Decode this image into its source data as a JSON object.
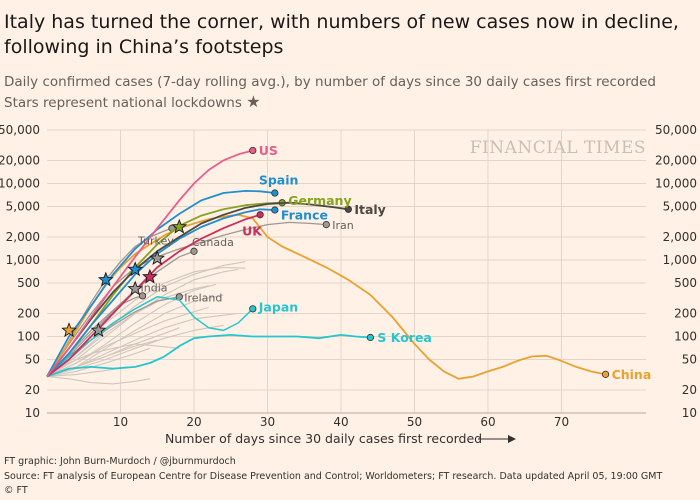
{
  "title": "Italy has turned the corner, with numbers of new cases now in decline, following in China’s footsteps",
  "subtitle_line1": "Daily confirmed cases (7-day rolling avg.), by number of days since 30 daily cases first recorded",
  "subtitle_line2": "Stars represent national lockdowns",
  "brand_watermark": "FINANCIAL TIMES",
  "footer": {
    "credit": "FT graphic: John Burn-Murdoch / @jburnmurdoch",
    "source": "Source: FT analysis of European Centre for Disease Prevention and Control; Worldometers; FT research. Data updated April 05, 19:00 GMT",
    "copyright": "© FT"
  },
  "chart_data": {
    "type": "line",
    "xlabel": "Number of days since 30 daily cases first recorded",
    "ylabel": "",
    "xlim": [
      0,
      80
    ],
    "ylim": [
      10,
      50000
    ],
    "yscale": "log",
    "yticks": [
      10,
      20,
      50,
      100,
      200,
      500,
      1000,
      2000,
      5000,
      10000,
      20000,
      50000
    ],
    "ytick_labels": [
      "10",
      "20",
      "50",
      "100",
      "200",
      "500",
      "1,000",
      "2,000",
      "5,000",
      "10,000",
      "20,000",
      "50,000"
    ],
    "xticks": [
      10,
      20,
      30,
      40,
      50,
      60,
      70
    ],
    "grid": true,
    "axis_labels_both_sides": true,
    "series": [
      {
        "name": "US",
        "color": "#e95d8c",
        "width": 1.8,
        "label_weight": "bold",
        "label_dx": 6,
        "label_dy": 0,
        "x": [
          0,
          3,
          6,
          9,
          12,
          15,
          18,
          20,
          22,
          24,
          26,
          28
        ],
        "y": [
          30,
          70,
          180,
          450,
          1100,
          2600,
          6000,
          10000,
          15000,
          20000,
          24000,
          27000
        ]
      },
      {
        "name": "Spain",
        "color": "#1f8fce",
        "width": 1.8,
        "label_weight": "bold",
        "label_dx": -16,
        "label_dy": -13,
        "x": [
          0,
          3,
          6,
          9,
          12,
          15,
          18,
          21,
          24,
          27,
          29,
          31
        ],
        "y": [
          30,
          100,
          250,
          650,
          1400,
          2500,
          4000,
          6000,
          7500,
          8000,
          7900,
          7500
        ]
      },
      {
        "name": "Germany",
        "color": "#85a320",
        "width": 1.8,
        "label_weight": "bold",
        "label_dx": 6,
        "label_dy": -2,
        "x": [
          0,
          3,
          6,
          9,
          12,
          15,
          18,
          21,
          24,
          27,
          30,
          32
        ],
        "y": [
          30,
          60,
          140,
          350,
          800,
          1600,
          2800,
          3800,
          4600,
          5200,
          5500,
          5600
        ]
      },
      {
        "name": "Italy",
        "color": "#4d4845",
        "width": 1.8,
        "label_weight": "bold",
        "label_dx": 6,
        "label_dy": 0,
        "x": [
          0,
          3,
          6,
          9,
          12,
          15,
          18,
          21,
          24,
          27,
          30,
          33,
          36,
          39,
          41
        ],
        "y": [
          30,
          70,
          170,
          380,
          750,
          1300,
          2000,
          3000,
          3900,
          4800,
          5400,
          5600,
          5300,
          4900,
          4600
        ]
      },
      {
        "name": "France",
        "color": "#1f8fce",
        "width": 1.8,
        "label_weight": "bold",
        "label_dx": 6,
        "label_dy": 5,
        "x": [
          0,
          3,
          6,
          9,
          12,
          15,
          18,
          21,
          24,
          27,
          29,
          31
        ],
        "y": [
          30,
          60,
          140,
          300,
          650,
          1200,
          1900,
          2700,
          3500,
          4200,
          4600,
          4500
        ]
      },
      {
        "name": "UK",
        "color": "#cc2e5e",
        "width": 1.8,
        "label_weight": "bold",
        "label_dx": -18,
        "label_dy": 16,
        "x": [
          0,
          3,
          6,
          9,
          12,
          15,
          18,
          21,
          24,
          27,
          29
        ],
        "y": [
          30,
          50,
          100,
          200,
          400,
          800,
          1300,
          1900,
          2600,
          3400,
          3900
        ]
      },
      {
        "name": "China",
        "color": "#eba131",
        "width": 1.8,
        "label_weight": "bold",
        "label_dx": 6,
        "label_dy": 0,
        "x": [
          0,
          2,
          4,
          6,
          8,
          10,
          12,
          14,
          16,
          18,
          20,
          22,
          24,
          26,
          28,
          30,
          32,
          35,
          38,
          41,
          44,
          47,
          50,
          52,
          54,
          56,
          58,
          60,
          62,
          64,
          66,
          68,
          70,
          72,
          74,
          76
        ],
        "y": [
          30,
          60,
          120,
          250,
          480,
          800,
          1200,
          1600,
          2100,
          2600,
          3000,
          3400,
          3700,
          3900,
          3500,
          2000,
          1500,
          1100,
          800,
          550,
          350,
          180,
          80,
          50,
          35,
          28,
          30,
          35,
          40,
          48,
          55,
          56,
          48,
          40,
          35,
          32
        ]
      },
      {
        "name": "S Korea",
        "color": "#26c6cf",
        "width": 1.8,
        "label_weight": "bold",
        "label_dx": 7,
        "label_dy": 0,
        "x": [
          0,
          3,
          6,
          9,
          12,
          14,
          16,
          18,
          20,
          22,
          25,
          28,
          31,
          34,
          37,
          40,
          42,
          44
        ],
        "y": [
          30,
          38,
          40,
          38,
          40,
          45,
          55,
          75,
          95,
          100,
          105,
          100,
          100,
          100,
          95,
          105,
          100,
          97
        ]
      },
      {
        "name": "Japan",
        "color": "#26c6cf",
        "width": 1.5,
        "label_weight": "bold",
        "label_dx": 6,
        "label_dy": -2,
        "x": [
          0,
          3,
          6,
          9,
          12,
          15,
          18,
          20,
          22,
          24,
          26,
          28
        ],
        "y": [
          30,
          55,
          90,
          150,
          230,
          330,
          300,
          180,
          130,
          120,
          150,
          230
        ]
      },
      {
        "name": "Iran",
        "color": "#9e9894",
        "width": 1.3,
        "label_weight": "normal",
        "label_dx": 6,
        "label_dy": 0,
        "x": [
          0,
          3,
          6,
          9,
          12,
          15,
          18,
          21,
          24,
          27,
          30,
          33,
          36,
          38
        ],
        "y": [
          30,
          80,
          200,
          450,
          800,
          1100,
          1400,
          1700,
          2100,
          2500,
          2900,
          3100,
          3000,
          2900
        ]
      },
      {
        "name": "Canada",
        "color": "#9e9894",
        "width": 1.3,
        "label_weight": "normal",
        "label_dx": -2,
        "label_dy": -10,
        "x": [
          0,
          3,
          6,
          9,
          12,
          15,
          18,
          20
        ],
        "y": [
          30,
          60,
          120,
          220,
          400,
          700,
          1100,
          1300
        ]
      },
      {
        "name": "Turkey",
        "color": "#9e9894",
        "width": 1.3,
        "label_weight": "normal",
        "label_dx": -34,
        "label_dy": 12,
        "x": [
          0,
          2,
          4,
          6,
          8,
          10,
          12,
          14,
          16,
          17
        ],
        "y": [
          30,
          60,
          130,
          280,
          550,
          950,
          1500,
          2000,
          2400,
          2600
        ]
      },
      {
        "name": "India",
        "color": "#9e9894",
        "width": 1.3,
        "label_weight": "normal",
        "label_dx": -2,
        "label_dy": -9,
        "x": [
          0,
          2,
          4,
          6,
          8,
          10,
          12,
          13
        ],
        "y": [
          30,
          45,
          70,
          110,
          170,
          260,
          320,
          340
        ]
      },
      {
        "name": "Ireland",
        "color": "#9e9894",
        "width": 1.3,
        "label_weight": "normal",
        "label_dx": 5,
        "label_dy": 0,
        "x": [
          0,
          3,
          6,
          9,
          12,
          15,
          18
        ],
        "y": [
          30,
          50,
          90,
          140,
          210,
          290,
          330
        ]
      }
    ],
    "background_series": [
      {
        "x": [
          0,
          4,
          8,
          12,
          16,
          20,
          24,
          27
        ],
        "y": [
          30,
          55,
          120,
          250,
          450,
          650,
          850,
          950
        ]
      },
      {
        "x": [
          0,
          4,
          8,
          12,
          16,
          20,
          24,
          26
        ],
        "y": [
          30,
          50,
          100,
          200,
          350,
          550,
          700,
          750
        ]
      },
      {
        "x": [
          0,
          4,
          8,
          12,
          16,
          20,
          23
        ],
        "y": [
          30,
          45,
          80,
          150,
          260,
          400,
          480
        ]
      },
      {
        "x": [
          0,
          4,
          8,
          12,
          16,
          20,
          24
        ],
        "y": [
          30,
          40,
          70,
          120,
          200,
          290,
          350
        ]
      },
      {
        "x": [
          0,
          4,
          8,
          12,
          16,
          20,
          22
        ],
        "y": [
          30,
          45,
          75,
          110,
          160,
          210,
          240
        ]
      },
      {
        "x": [
          0,
          4,
          8,
          12,
          16,
          20,
          24,
          26
        ],
        "y": [
          30,
          40,
          60,
          90,
          130,
          170,
          190,
          200
        ]
      },
      {
        "x": [
          0,
          4,
          8,
          12,
          16,
          18
        ],
        "y": [
          30,
          40,
          55,
          80,
          110,
          130
        ]
      },
      {
        "x": [
          0,
          4,
          8,
          12,
          16,
          20,
          24
        ],
        "y": [
          30,
          38,
          50,
          70,
          95,
          120,
          140
        ]
      },
      {
        "x": [
          0,
          4,
          8,
          12,
          14
        ],
        "y": [
          30,
          35,
          45,
          60,
          70
        ]
      },
      {
        "x": [
          0,
          3,
          6,
          9,
          12,
          15,
          18
        ],
        "y": [
          30,
          45,
          60,
          70,
          80,
          75,
          70
        ]
      },
      {
        "x": [
          0,
          4,
          8,
          11
        ],
        "y": [
          30,
          32,
          36,
          40
        ]
      },
      {
        "x": [
          0,
          4,
          8,
          12,
          16,
          20,
          24,
          27
        ],
        "y": [
          30,
          65,
          150,
          300,
          500,
          700,
          800,
          780
        ]
      },
      {
        "x": [
          0,
          4,
          8,
          12,
          16,
          20,
          22
        ],
        "y": [
          30,
          55,
          110,
          200,
          320,
          420,
          460
        ]
      },
      {
        "x": [
          0,
          3,
          6,
          9,
          12,
          14
        ],
        "y": [
          30,
          28,
          25,
          24,
          26,
          28
        ]
      },
      {
        "x": [
          0,
          4,
          8,
          12,
          15
        ],
        "y": [
          30,
          40,
          55,
          75,
          90
        ]
      }
    ],
    "lockdowns": [
      {
        "country": "Italy",
        "x": 7,
        "y": 120,
        "color": "#9e9894"
      },
      {
        "country": "China",
        "x": 3,
        "y": 120,
        "color": "#eba131"
      },
      {
        "country": "Spain",
        "x": 8,
        "y": 550,
        "color": "#1f8fce"
      },
      {
        "country": "France",
        "x": 12,
        "y": 750,
        "color": "#1f8fce"
      },
      {
        "country": "Italy",
        "x": 12,
        "y": 420,
        "color": "#9e9894"
      },
      {
        "country": "UK",
        "x": 14,
        "y": 600,
        "color": "#cc2e5e"
      },
      {
        "country": "Italy",
        "x": 15,
        "y": 1050,
        "color": "#9e9894"
      },
      {
        "country": "Germany",
        "x": 18,
        "y": 2700,
        "color": "#85a320"
      }
    ]
  }
}
